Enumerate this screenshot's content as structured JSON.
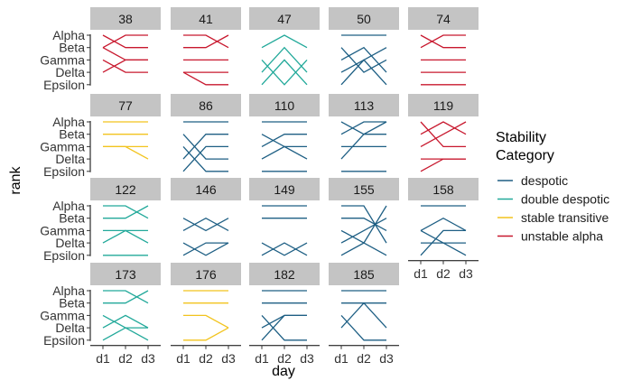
{
  "chart_data": {
    "type": "line",
    "title": "",
    "xlabel": "day",
    "ylabel": "rank",
    "x": [
      "d1",
      "d2",
      "d3"
    ],
    "y_levels": [
      "Alpha",
      "Beta",
      "Gamma",
      "Delta",
      "Epsilon"
    ],
    "legend": {
      "title_lines": [
        "Stability",
        "Category"
      ],
      "position": "right",
      "entries": [
        {
          "key": "despotic",
          "label": "despotic",
          "color": "#1e5f84"
        },
        {
          "key": "double",
          "label": "double despotic",
          "color": "#22a99a"
        },
        {
          "key": "stable",
          "label": "stable transitive",
          "color": "#f2c41e"
        },
        {
          "key": "unstable",
          "label": "unstable alpha",
          "color": "#c8182e"
        }
      ]
    },
    "panels": [
      {
        "id": "38",
        "category": "unstable",
        "lines": [
          [
            2,
            1,
            1
          ],
          [
            1,
            2,
            2
          ],
          [
            2,
            3,
            3
          ],
          [
            4,
            3,
            3
          ],
          [
            3,
            4,
            4
          ]
        ]
      },
      {
        "id": "41",
        "category": "unstable",
        "lines": [
          [
            1,
            1,
            2
          ],
          [
            2,
            2,
            1
          ],
          [
            3,
            3,
            3
          ],
          [
            4,
            5,
            5
          ],
          [
            4,
            4,
            4
          ]
        ]
      },
      {
        "id": "47",
        "category": "double",
        "lines": [
          [
            2,
            1,
            2
          ],
          [
            4,
            2,
            4
          ],
          [
            3,
            5,
            3
          ],
          [
            5,
            3,
            5
          ]
        ]
      },
      {
        "id": "50",
        "category": "despotic",
        "lines": [
          [
            1,
            1,
            1
          ],
          [
            3,
            2,
            4
          ],
          [
            2,
            4,
            3
          ],
          [
            4,
            3,
            2
          ],
          [
            5,
            3,
            5
          ]
        ]
      },
      {
        "id": "74",
        "category": "unstable",
        "lines": [
          [
            1,
            2,
            2
          ],
          [
            2,
            1,
            1
          ],
          [
            3,
            3,
            3
          ],
          [
            4,
            4,
            4
          ],
          [
            5,
            5,
            5
          ]
        ]
      },
      {
        "id": "77",
        "category": "stable",
        "lines": [
          [
            1,
            1,
            1
          ],
          [
            2,
            2,
            2
          ],
          [
            3,
            3,
            3
          ],
          [
            3,
            3,
            4
          ]
        ]
      },
      {
        "id": "86",
        "category": "despotic",
        "lines": [
          [
            1,
            1,
            1
          ],
          [
            2,
            4,
            4
          ],
          [
            4,
            2,
            2
          ],
          [
            5,
            3,
            3
          ],
          [
            3,
            5,
            5
          ]
        ]
      },
      {
        "id": "110",
        "category": "despotic",
        "lines": [
          [
            1,
            1,
            1
          ],
          [
            2,
            3,
            3
          ],
          [
            3,
            2,
            2
          ],
          [
            4,
            3,
            4
          ],
          [
            5,
            5,
            5
          ]
        ]
      },
      {
        "id": "113",
        "category": "despotic",
        "lines": [
          [
            1,
            2,
            2
          ],
          [
            2,
            1,
            1
          ],
          [
            3,
            3,
            3
          ],
          [
            4,
            2,
            1
          ],
          [
            5,
            5,
            5
          ]
        ]
      },
      {
        "id": "119",
        "category": "unstable",
        "lines": [
          [
            1,
            3,
            3
          ],
          [
            2,
            1,
            2
          ],
          [
            3,
            2,
            1
          ],
          [
            4,
            4,
            4
          ],
          [
            5,
            4,
            4
          ]
        ]
      },
      {
        "id": "122",
        "category": "double",
        "lines": [
          [
            1,
            1,
            2
          ],
          [
            2,
            2,
            1
          ],
          [
            3,
            3,
            3
          ],
          [
            4,
            3,
            4
          ],
          [
            5,
            5,
            5
          ]
        ]
      },
      {
        "id": "146",
        "category": "despotic",
        "lines": [
          [
            2,
            3,
            2
          ],
          [
            3,
            2,
            3
          ],
          [
            4,
            5,
            4
          ],
          [
            5,
            4,
            4
          ]
        ]
      },
      {
        "id": "149",
        "category": "despotic",
        "lines": [
          [
            1,
            1,
            1
          ],
          [
            2,
            2,
            2
          ],
          [
            4,
            5,
            4
          ],
          [
            5,
            4,
            5
          ]
        ]
      },
      {
        "id": "155",
        "category": "despotic",
        "lines": [
          [
            1,
            1,
            4
          ],
          [
            2,
            2,
            3
          ],
          [
            3,
            4,
            5
          ],
          [
            4,
            3,
            2
          ],
          [
            5,
            4,
            1
          ]
        ]
      },
      {
        "id": "158",
        "category": "despotic",
        "lines": [
          [
            1,
            1,
            1
          ],
          [
            3,
            2,
            3
          ],
          [
            5,
            3,
            3
          ],
          [
            4,
            4,
            4
          ],
          [
            3,
            4,
            5
          ]
        ]
      },
      {
        "id": "173",
        "category": "double",
        "lines": [
          [
            1,
            1,
            2
          ],
          [
            2,
            2,
            1
          ],
          [
            4,
            3,
            4
          ],
          [
            3,
            4,
            5
          ],
          [
            5,
            4,
            4
          ]
        ]
      },
      {
        "id": "176",
        "category": "stable",
        "lines": [
          [
            1,
            1,
            1
          ],
          [
            2,
            2,
            2
          ],
          [
            3,
            3,
            4
          ],
          [
            5,
            5,
            4
          ]
        ]
      },
      {
        "id": "182",
        "category": "despotic",
        "lines": [
          [
            1,
            1,
            1
          ],
          [
            2,
            2,
            2
          ],
          [
            4,
            3,
            3
          ],
          [
            5,
            3,
            3
          ],
          [
            3,
            5,
            5
          ]
        ]
      },
      {
        "id": "185",
        "category": "despotic",
        "lines": [
          [
            1,
            1,
            1
          ],
          [
            2,
            2,
            2
          ],
          [
            4,
            2,
            4
          ],
          [
            3,
            5,
            5
          ]
        ]
      }
    ]
  }
}
